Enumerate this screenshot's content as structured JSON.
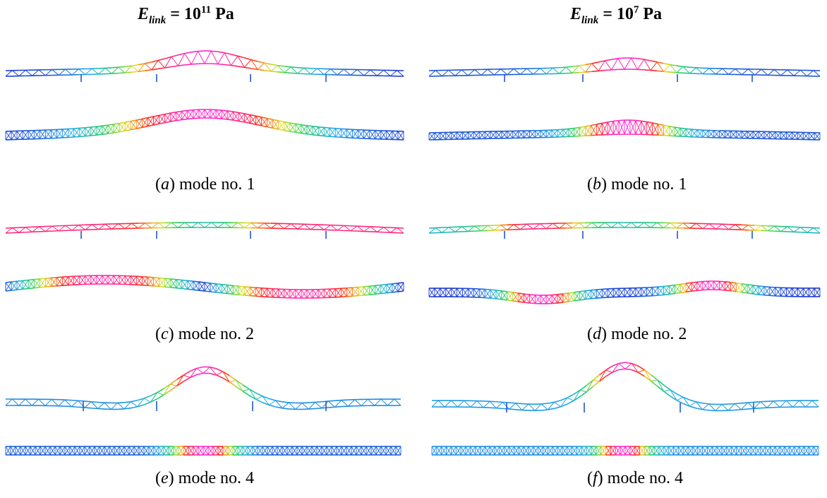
{
  "columns": [
    {
      "symbol": "E",
      "subscript": "link",
      "equals": " = 10",
      "exponent": "11",
      "unit": " Pa"
    },
    {
      "symbol": "E",
      "subscript": "link",
      "equals": " = 10",
      "exponent": "7",
      "unit": " Pa"
    }
  ],
  "panels": [
    {
      "letter": "a",
      "text": " mode no. 1"
    },
    {
      "letter": "b",
      "text": " mode no. 1"
    },
    {
      "letter": "c",
      "text": " mode no. 2"
    },
    {
      "letter": "d",
      "text": " mode no. 2"
    },
    {
      "letter": "e",
      "text": " mode no. 4"
    },
    {
      "letter": "f",
      "text": " mode no. 4"
    }
  ],
  "colors": {
    "low": "#1a1ad0",
    "mid": "#22cc44",
    "high": "#ff1a1a",
    "peak": "#ff22cc",
    "pier": "#2255cc"
  }
}
